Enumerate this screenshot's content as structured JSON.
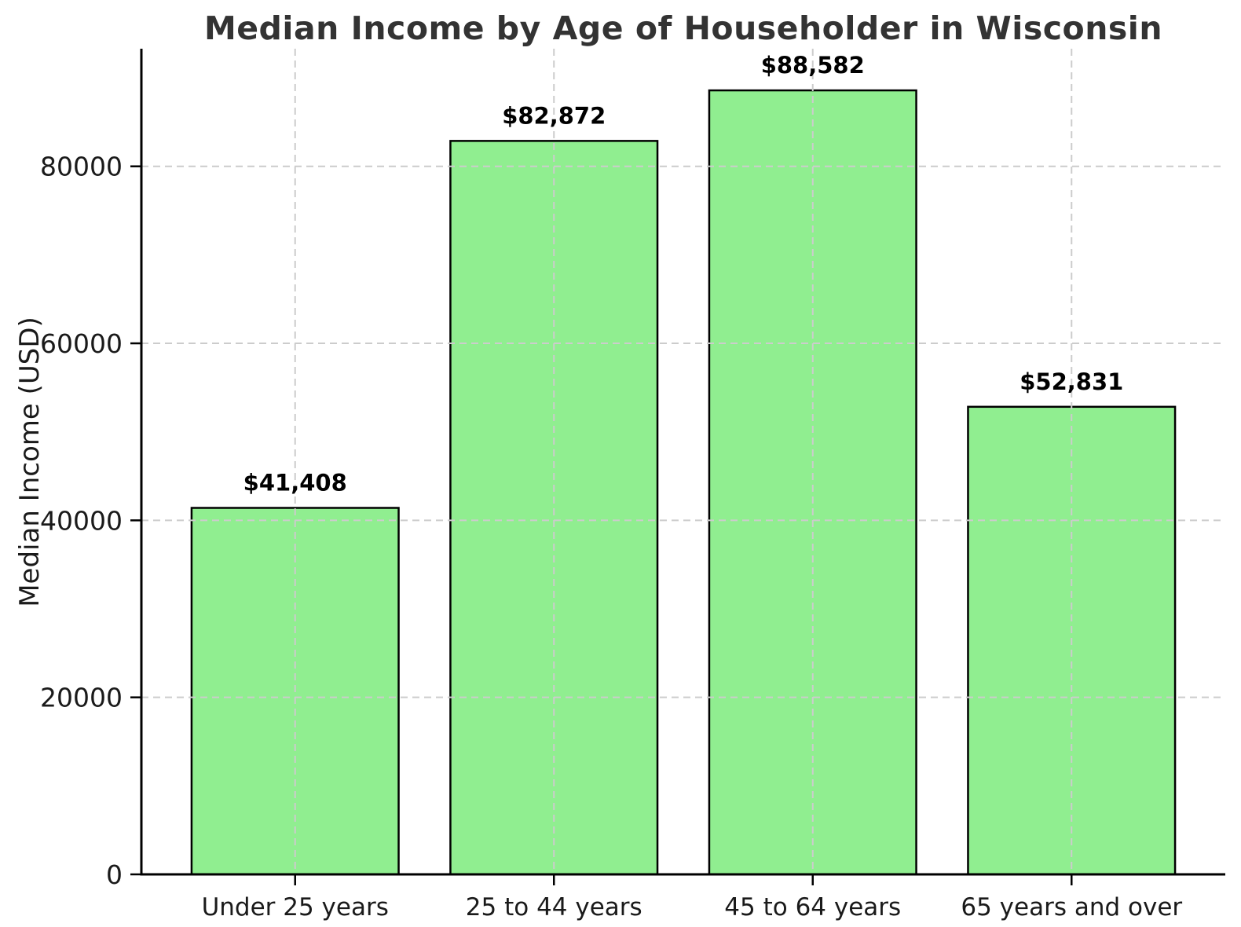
{
  "chart_data": {
    "type": "bar",
    "title": "Median Income by Age of Householder in Wisconsin",
    "xlabel": "",
    "ylabel": "Median Income (USD)",
    "categories": [
      "Under 25 years",
      "25 to 44 years",
      "45 to 64 years",
      "65 years and over"
    ],
    "values": [
      41408,
      82872,
      88582,
      52831
    ],
    "value_labels": [
      "$41,408",
      "$82,872",
      "$88,582",
      "$52,831"
    ],
    "yticks": [
      0,
      20000,
      40000,
      60000,
      80000
    ],
    "ytick_labels": [
      "0",
      "20000",
      "40000",
      "60000",
      "80000"
    ],
    "ylim": [
      0,
      93290
    ],
    "grid": "dashed, horizontal and vertical, drawn above bars",
    "legend_position": "none",
    "colors": {
      "bar_fill": "#90EE90",
      "bar_edge": "#000000",
      "grid": "#cccccc",
      "title": "#333333",
      "tick_text": "#1a1a1a",
      "value_label_text": "#000000",
      "spine": "#000000",
      "background": "#ffffff"
    }
  }
}
